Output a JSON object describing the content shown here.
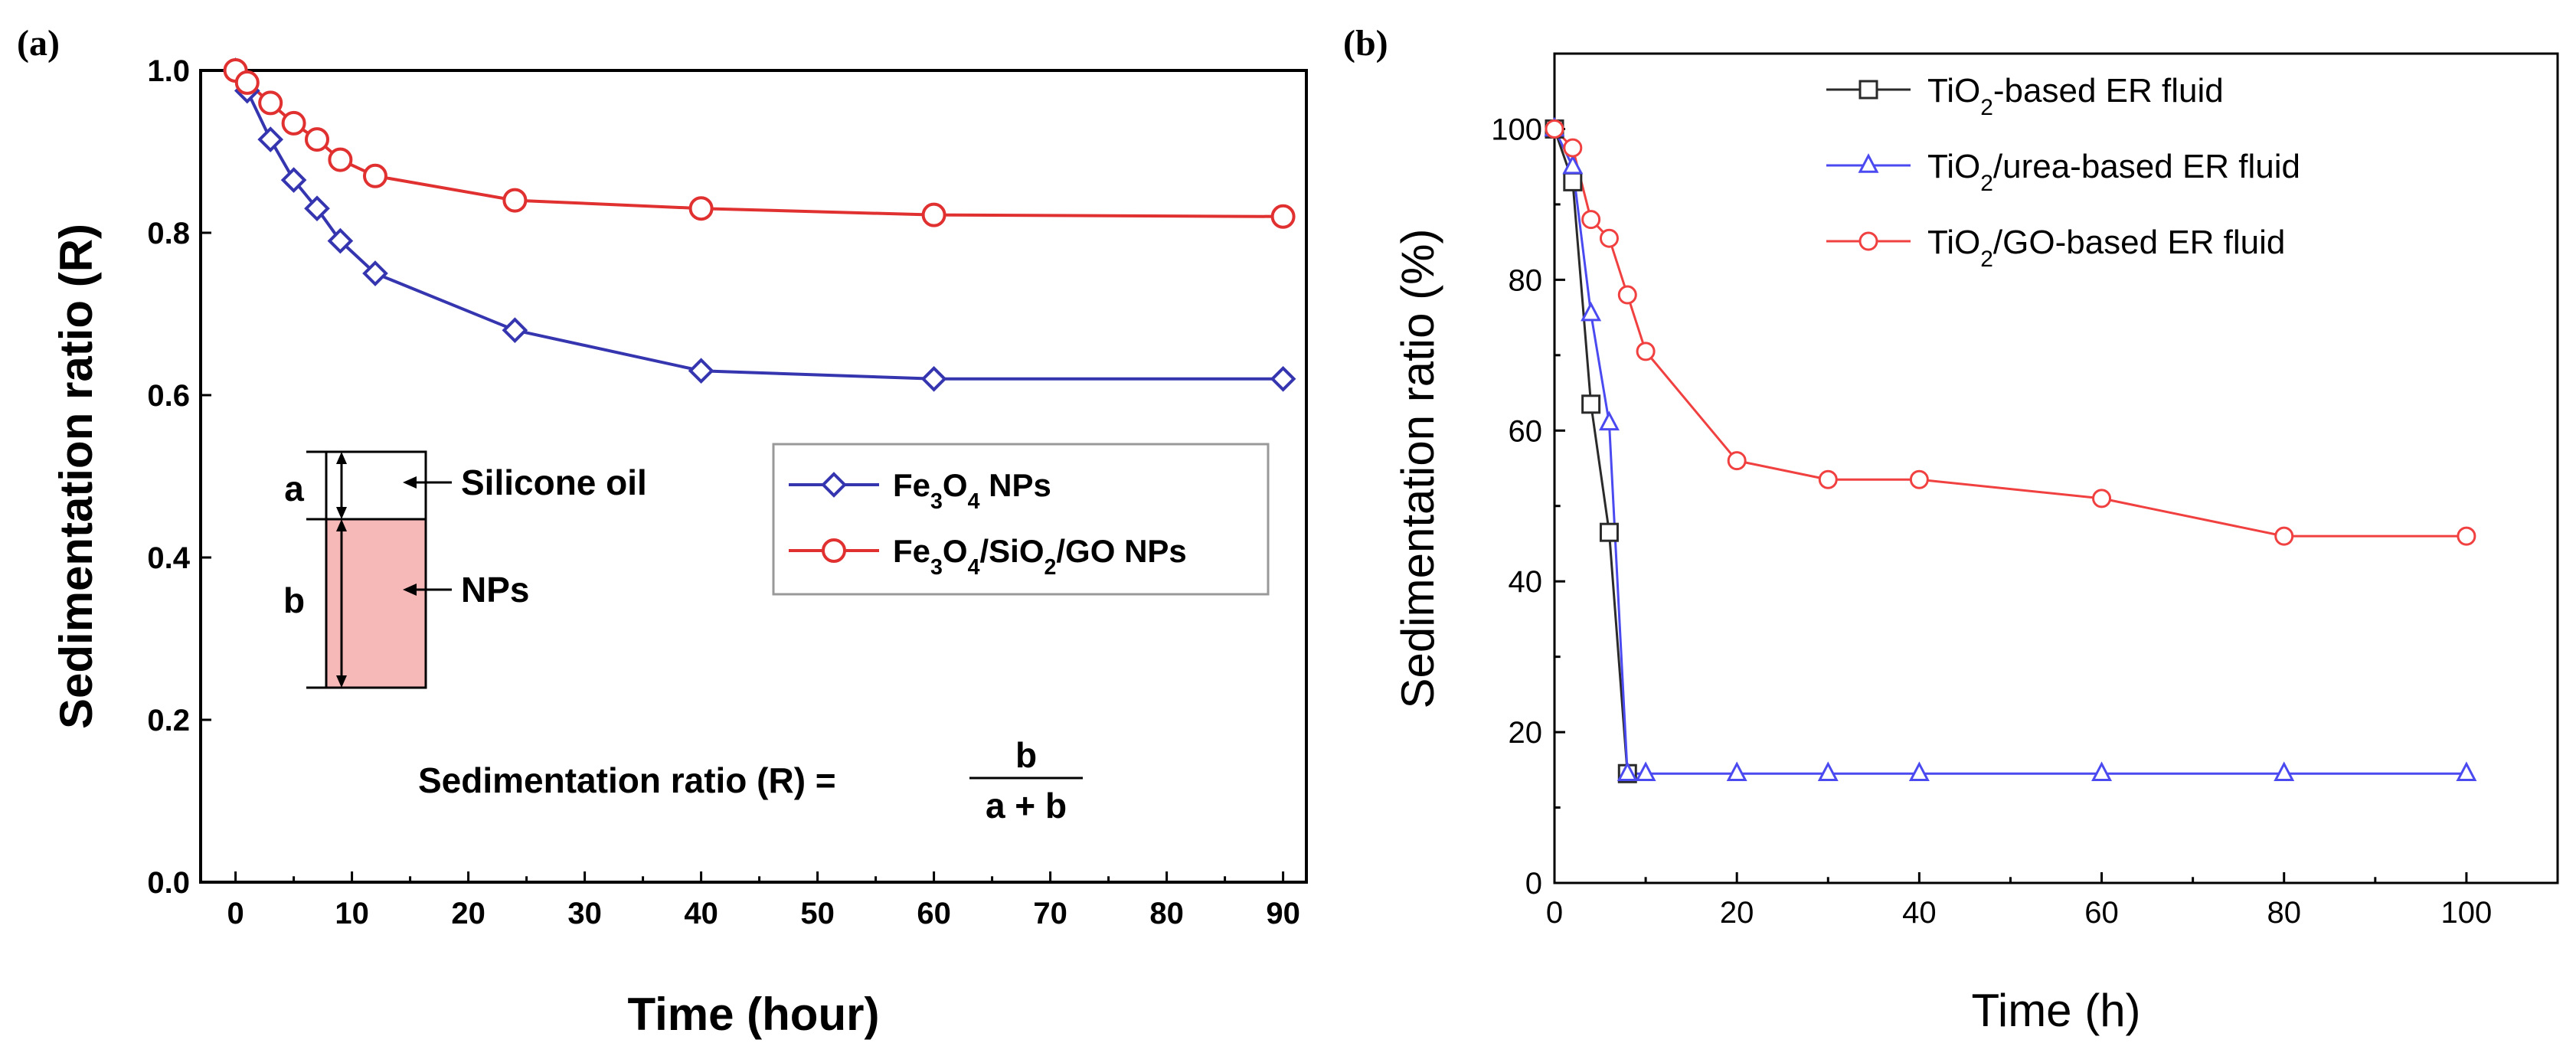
{
  "chart_data": [
    {
      "panel_label": "(a)",
      "type": "line",
      "xlabel": "Time (hour)",
      "ylabel": "Sedimentation ratio (R)",
      "xlim": [
        -3,
        92
      ],
      "ylim": [
        0,
        1.0
      ],
      "xticks": [
        0,
        10,
        20,
        30,
        40,
        50,
        60,
        70,
        80,
        90
      ],
      "yticks": [
        0.0,
        0.2,
        0.4,
        0.6,
        0.8,
        1.0
      ],
      "xtick_labels": [
        "0",
        "10",
        "20",
        "30",
        "40",
        "50",
        "60",
        "70",
        "80",
        "90"
      ],
      "ytick_labels": [
        "0.0",
        "0.2",
        "0.4",
        "0.6",
        "0.8",
        "1.0"
      ],
      "legend_position": "center-right",
      "series": [
        {
          "name": "Fe3O4 NPs",
          "label_parts": [
            [
              "Fe",
              ""
            ],
            [
              "3",
              "sub"
            ],
            [
              "O",
              ""
            ],
            [
              "4",
              "sub"
            ],
            [
              " NPs",
              ""
            ]
          ],
          "marker": "diamond",
          "color": "#3535b0",
          "x": [
            0,
            1,
            3,
            5,
            7,
            9,
            12,
            24,
            40,
            60,
            90
          ],
          "y": [
            1.0,
            0.975,
            0.915,
            0.865,
            0.83,
            0.79,
            0.75,
            0.68,
            0.63,
            0.62,
            0.62
          ]
        },
        {
          "name": "Fe3O4/SiO2/GO NPs",
          "label_parts": [
            [
              "Fe",
              ""
            ],
            [
              "3",
              "sub"
            ],
            [
              "O",
              ""
            ],
            [
              "4",
              "sub"
            ],
            [
              "/SiO",
              ""
            ],
            [
              "2",
              "sub"
            ],
            [
              "/GO NPs",
              ""
            ]
          ],
          "marker": "circle",
          "color": "#e03030",
          "x": [
            0,
            1,
            3,
            5,
            7,
            9,
            12,
            24,
            40,
            60,
            90
          ],
          "y": [
            1.0,
            0.985,
            0.96,
            0.935,
            0.915,
            0.89,
            0.87,
            0.84,
            0.83,
            0.822,
            0.82
          ]
        }
      ],
      "inset": {
        "label_a": "a",
        "label_b": "b",
        "label_oil": "Silicone oil",
        "label_nps": "NPs",
        "nps_color": "#f7b8b8"
      },
      "formula": {
        "lhs": "Sedimentation ratio (R) =",
        "numerator": "b",
        "denominator": "a + b"
      }
    },
    {
      "panel_label": "(b)",
      "type": "line",
      "xlabel": "Time (h)",
      "ylabel": "Sedimentation ratio (%)",
      "xlim": [
        0,
        110
      ],
      "ylim": [
        0,
        110
      ],
      "xticks": [
        0,
        20,
        40,
        60,
        80,
        100
      ],
      "yticks": [
        0,
        20,
        40,
        60,
        80,
        100
      ],
      "xtick_labels": [
        "0",
        "20",
        "40",
        "60",
        "80",
        "100"
      ],
      "ytick_labels": [
        "0",
        "20",
        "40",
        "60",
        "80",
        "100"
      ],
      "legend_position": "top-right",
      "series": [
        {
          "name": "TiO2-based ER fluid",
          "label_parts": [
            [
              "TiO",
              ""
            ],
            [
              "2",
              "sub"
            ],
            [
              "-based ER fluid",
              ""
            ]
          ],
          "marker": "square",
          "color": "#2a2a2a",
          "x": [
            0,
            2,
            4,
            6,
            8
          ],
          "y": [
            100,
            93,
            63.5,
            46.5,
            14.5
          ]
        },
        {
          "name": "TiO2/urea-based ER fluid",
          "label_parts": [
            [
              "TiO",
              ""
            ],
            [
              "2",
              "sub"
            ],
            [
              "/urea-based ER fluid",
              ""
            ]
          ],
          "marker": "triangle",
          "color": "#4a4af0",
          "x": [
            0,
            2,
            4,
            6,
            8,
            10,
            20,
            30,
            40,
            60,
            80,
            100
          ],
          "y": [
            100,
            95,
            75.5,
            61,
            14.5,
            14.5,
            14.5,
            14.5,
            14.5,
            14.5,
            14.5,
            14.5
          ]
        },
        {
          "name": "TiO2/GO-based ER fluid",
          "label_parts": [
            [
              "TiO",
              ""
            ],
            [
              "2",
              "sub"
            ],
            [
              "/GO-based ER fluid",
              ""
            ]
          ],
          "marker": "circle",
          "color": "#f04040",
          "x": [
            0,
            2,
            4,
            6,
            8,
            10,
            20,
            30,
            40,
            60,
            80,
            100
          ],
          "y": [
            100,
            97.5,
            88,
            85.5,
            78,
            70.5,
            56,
            53.5,
            53.5,
            51,
            46,
            46
          ]
        }
      ]
    }
  ]
}
